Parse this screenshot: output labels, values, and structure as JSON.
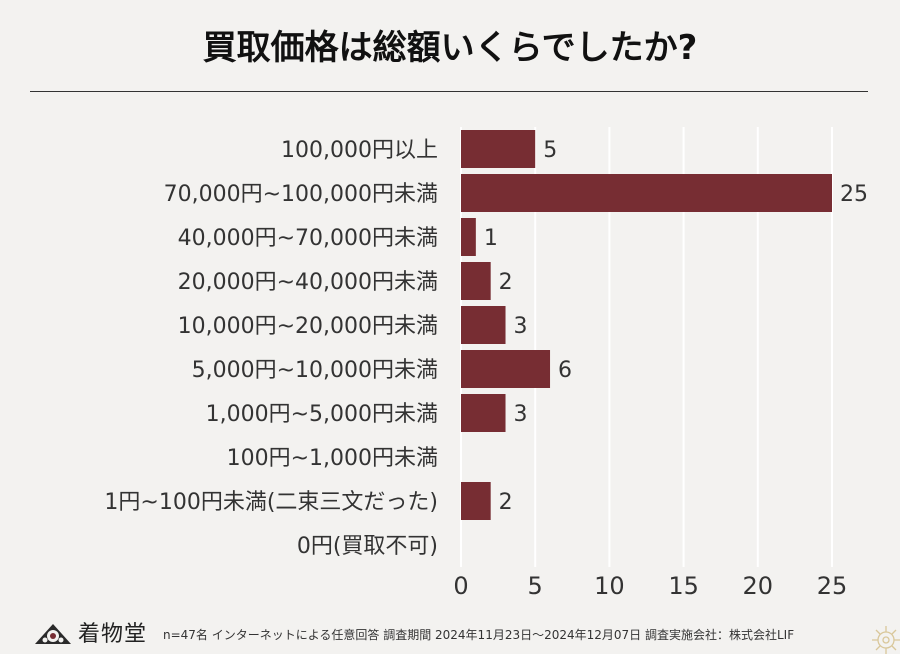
{
  "title": "買取価格は総額いくらでしたか?",
  "chart_data": {
    "type": "bar",
    "orientation": "horizontal",
    "categories": [
      "100,000円以上",
      "70,000円~100,000円未満",
      "40,000円~70,000円未満",
      "20,000円~40,000円未満",
      "10,000円~20,000円未満",
      "5,000円~10,000円未満",
      "1,000円~5,000円未満",
      "100円~1,000円未満",
      "1円~100円未満(二束三文だった)",
      "0円(買取不可)"
    ],
    "values": [
      5,
      25,
      1,
      2,
      3,
      6,
      3,
      0,
      2,
      0
    ],
    "value_labels": [
      "5",
      "25",
      "1",
      "2",
      "3",
      "6",
      "3",
      "",
      "2",
      ""
    ],
    "xlim": [
      0,
      25
    ],
    "xticks": [
      0,
      5,
      10,
      15,
      20,
      25
    ],
    "grid": true,
    "bar_color": "#772d33",
    "title": "買取価格は総額いくらでしたか?"
  },
  "footer": {
    "logo_text": "着物堂",
    "footnote": "n=47名 インターネットによる任意回答 調査期間 2024年11月23日〜2024年12月07日 調査実施会社：株式会社LIF"
  },
  "colors": {
    "background": "#f3f2f0",
    "bar": "#772d33",
    "grid": "#ffffff"
  }
}
